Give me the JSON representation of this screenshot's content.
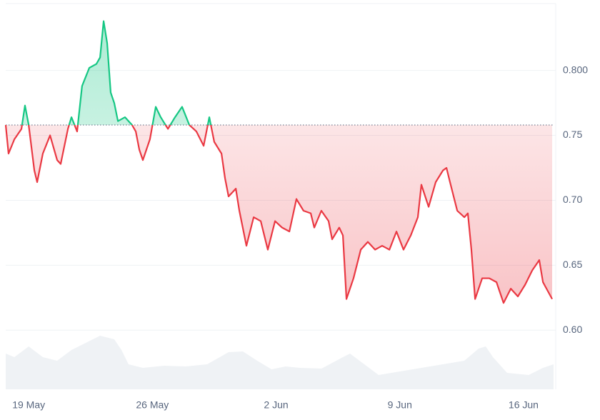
{
  "chart_data": {
    "type": "line",
    "x": [
      -1.3,
      -1.14,
      -0.81,
      -0.41,
      -0.21,
      0.0,
      0.32,
      0.48,
      0.8,
      1.21,
      1.61,
      1.81,
      2.22,
      2.42,
      2.74,
      3.02,
      3.43,
      3.83,
      4.04,
      4.24,
      4.44,
      4.64,
      4.84,
      5.05,
      5.45,
      5.85,
      6.06,
      6.26,
      6.46,
      6.86,
      7.19,
      7.47,
      7.88,
      8.28,
      8.68,
      9.09,
      9.49,
      9.9,
      10.22,
      10.5,
      10.91,
      11.11,
      11.31,
      11.72,
      11.92,
      12.32,
      12.73,
      13.13,
      13.53,
      13.94,
      14.34,
      14.75,
      15.15,
      15.55,
      15.96,
      16.16,
      16.56,
      16.97,
      17.17,
      17.57,
      17.78,
      17.98,
      18.38,
      18.79,
      19.19,
      19.6,
      20.0,
      20.41,
      20.81,
      21.21,
      21.62,
      22.02,
      22.22,
      22.63,
      23.03,
      23.44,
      23.64,
      23.84,
      24.25,
      24.65,
      24.85,
      25.05,
      25.26,
      25.66,
      26.06,
      26.47,
      26.87,
      27.28,
      27.68,
      28.09,
      28.49,
      28.89,
      29.1,
      29.3,
      29.62
    ],
    "values": [
      0.758,
      0.736,
      0.747,
      0.755,
      0.773,
      0.758,
      0.723,
      0.714,
      0.736,
      0.75,
      0.731,
      0.728,
      0.755,
      0.764,
      0.753,
      0.788,
      0.802,
      0.805,
      0.81,
      0.838,
      0.821,
      0.783,
      0.775,
      0.761,
      0.764,
      0.758,
      0.753,
      0.739,
      0.731,
      0.747,
      0.772,
      0.764,
      0.755,
      0.764,
      0.772,
      0.758,
      0.753,
      0.742,
      0.764,
      0.745,
      0.736,
      0.717,
      0.703,
      0.709,
      0.692,
      0.665,
      0.687,
      0.684,
      0.662,
      0.684,
      0.679,
      0.676,
      0.701,
      0.692,
      0.69,
      0.679,
      0.692,
      0.684,
      0.67,
      0.679,
      0.673,
      0.624,
      0.64,
      0.662,
      0.668,
      0.662,
      0.665,
      0.662,
      0.676,
      0.662,
      0.673,
      0.687,
      0.712,
      0.695,
      0.714,
      0.723,
      0.725,
      0.714,
      0.692,
      0.687,
      0.69,
      0.662,
      0.624,
      0.64,
      0.64,
      0.637,
      0.621,
      0.632,
      0.626,
      0.635,
      0.646,
      0.654,
      0.637,
      0.632,
      0.624
    ],
    "baseline": 0.758,
    "up_color": "#16c784",
    "down_color": "#ea3943",
    "volume": {
      "color": "#eff2f5",
      "x": [
        -1.3,
        -0.81,
        0.0,
        0.8,
        1.61,
        2.42,
        3.23,
        4.04,
        4.84,
        5.25,
        5.65,
        6.46,
        7.67,
        8.89,
        10.1,
        11.31,
        12.12,
        12.93,
        13.74,
        14.54,
        15.35,
        16.57,
        17.78,
        18.18,
        18.99,
        19.8,
        21.01,
        22.22,
        23.44,
        24.65,
        25.46,
        25.86,
        26.27,
        27.07,
        28.29,
        29.1,
        29.7
      ],
      "values": [
        50,
        45,
        60,
        45,
        40,
        55,
        65,
        75,
        70,
        55,
        35,
        30,
        33,
        32,
        35,
        52,
        53,
        40,
        28,
        32,
        30,
        29,
        45,
        50,
        35,
        20,
        25,
        30,
        35,
        40,
        57,
        60,
        45,
        23,
        20,
        30,
        35
      ]
    },
    "xlim": [
      -1.3,
      29.7
    ],
    "xticks": [
      {
        "value": 0,
        "label": "19 May"
      },
      {
        "value": 7,
        "label": "26 May"
      },
      {
        "value": 14,
        "label": "2 Jun"
      },
      {
        "value": 21,
        "label": "9 Jun"
      },
      {
        "value": 28,
        "label": "16 Jun"
      }
    ],
    "ylim": [
      0.5545,
      0.8515
    ],
    "yticks": [
      {
        "value": 0.6,
        "label": "0.60"
      },
      0.65,
      {
        "value": 0.7,
        "label": "0.70"
      },
      0.75,
      {
        "value": 0.8,
        "label": "0.800"
      }
    ],
    "grid": true
  }
}
